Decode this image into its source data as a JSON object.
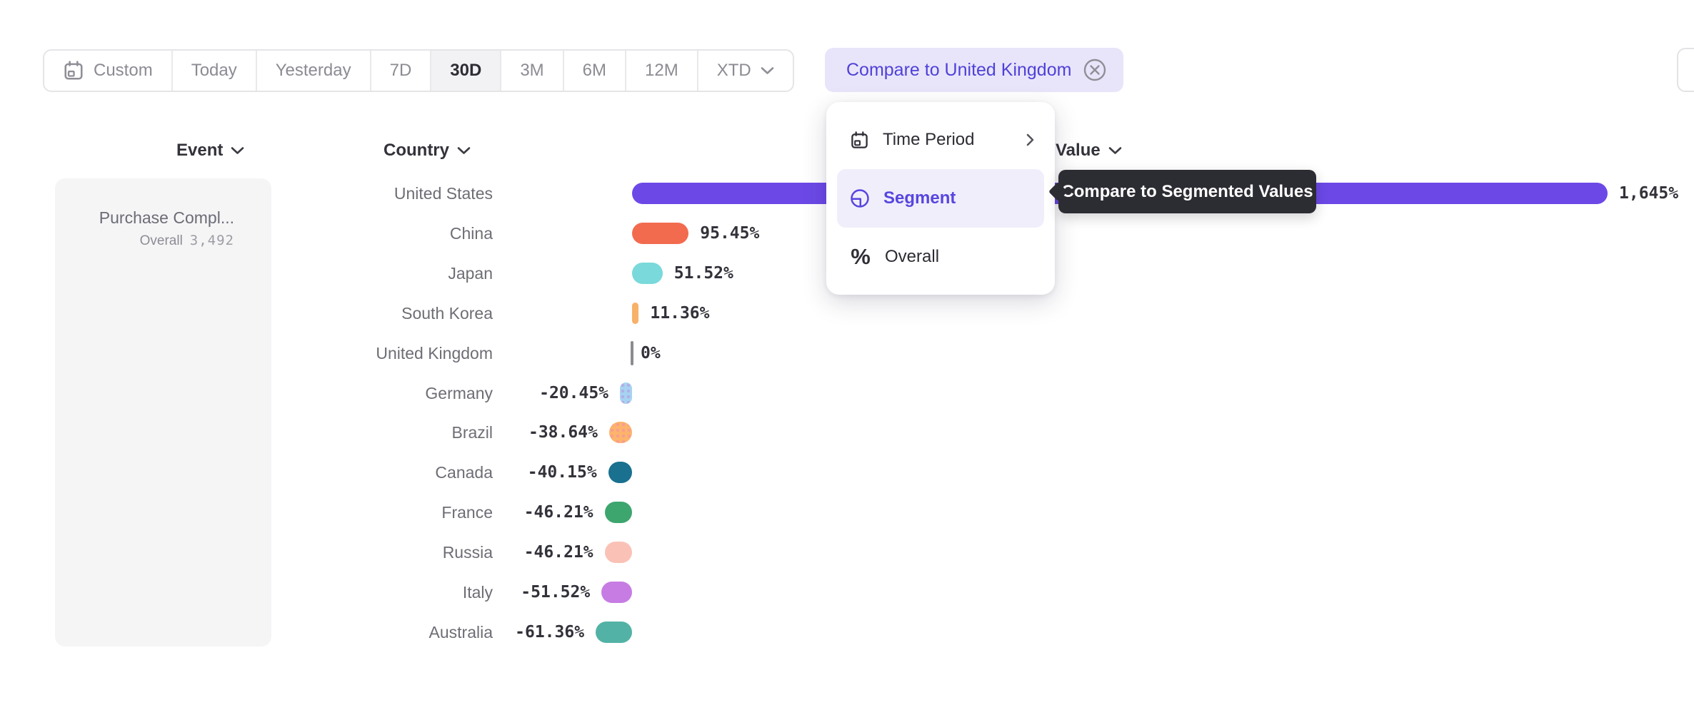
{
  "toolbar": {
    "buttons": [
      {
        "label": "Custom",
        "icon": "calendar",
        "selected": false
      },
      {
        "label": "Today",
        "selected": false
      },
      {
        "label": "Yesterday",
        "selected": false
      },
      {
        "label": "7D",
        "selected": false
      },
      {
        "label": "30D",
        "selected": true
      },
      {
        "label": "3M",
        "selected": false
      },
      {
        "label": "6M",
        "selected": false
      },
      {
        "label": "12M",
        "selected": false
      },
      {
        "label": "XTD",
        "selected": false,
        "has_dropdown": true
      }
    ],
    "compare_chip": {
      "label": "Compare to United Kingdom",
      "close_icon": "circle-x",
      "bg_color": "#e8e5fa",
      "text_color": "#4f41d8"
    }
  },
  "columns": {
    "event": "Event",
    "country": "Country",
    "value": "Value"
  },
  "event_panel": {
    "event_name": "Purchase Compl...",
    "overall_label": "Overall",
    "overall_value": "3,492"
  },
  "menu": {
    "items": [
      {
        "label": "Time Period",
        "icon": "calendar-icon",
        "has_submenu": true,
        "selected": false
      },
      {
        "label": "Segment",
        "icon": "segment-icon",
        "has_submenu": false,
        "selected": true
      },
      {
        "label": "Overall",
        "icon": "percent-icon",
        "has_submenu": false,
        "selected": false
      }
    ]
  },
  "tooltip": {
    "text": "Compare to Segmented Values"
  },
  "chart_data": {
    "type": "bar",
    "orientation": "horizontal",
    "title": "",
    "xlabel": "Value",
    "ylabel": "Country",
    "categories": [
      "United States",
      "China",
      "Japan",
      "South Korea",
      "United Kingdom",
      "Germany",
      "Brazil",
      "Canada",
      "France",
      "Russia",
      "Italy",
      "Australia"
    ],
    "values": [
      1645,
      95.45,
      51.52,
      11.36,
      0,
      -20.45,
      -38.64,
      -40.15,
      -46.21,
      -46.21,
      -51.52,
      -61.36
    ],
    "value_labels": [
      "1,645%",
      "95.45%",
      "51.52%",
      "11.36%",
      "0%",
      "-20.45%",
      "-38.64%",
      "-40.15%",
      "-46.21%",
      "-46.21%",
      "-51.52%",
      "-61.36%"
    ],
    "bar_colors": [
      "#6c49e7",
      "#f26b4f",
      "#7ad9da",
      "#f8b168",
      "#8b8b90",
      "#a6d4f0",
      "#fcb46b",
      "#19708f",
      "#3da56e",
      "#fac2b6",
      "#c67ce3",
      "#53b2a6"
    ],
    "patterned": [
      false,
      false,
      false,
      false,
      false,
      true,
      true,
      false,
      false,
      false,
      false,
      false
    ],
    "pattern_dot_colors": [
      "",
      "",
      "",
      "",
      "",
      "rgba(185,150,230,0.6)",
      "rgba(245,140,170,0.55)",
      "",
      "",
      "",
      "",
      ""
    ],
    "zero_baseline_color": "#8b8b90",
    "grid": false,
    "legend": "none"
  }
}
